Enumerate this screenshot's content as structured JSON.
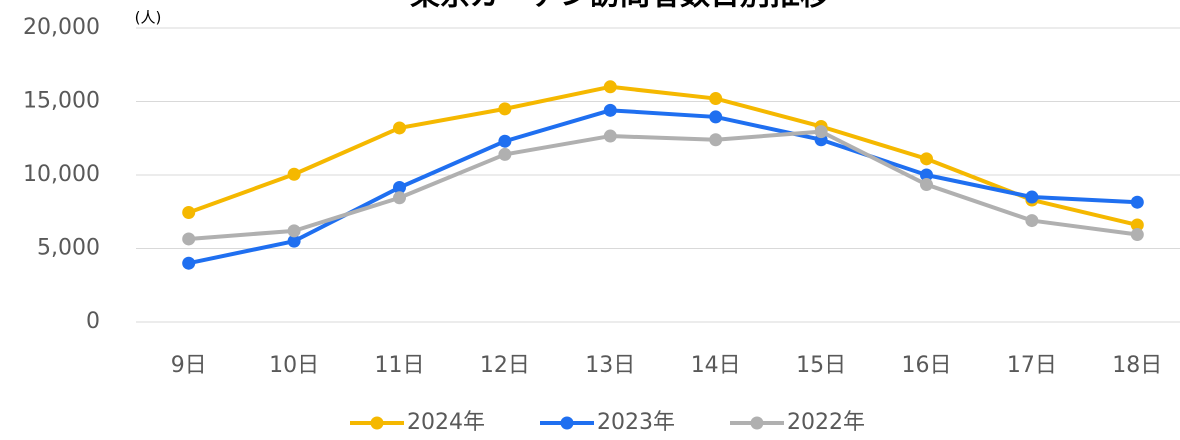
{
  "chart_data": {
    "type": "line",
    "title": "東京ガーデン訪問者数日別推移",
    "unit_label": "(人)",
    "categories": [
      "9日",
      "10日",
      "11日",
      "12日",
      "13日",
      "14日",
      "15日",
      "16日",
      "17日",
      "18日"
    ],
    "series": [
      {
        "name": "2024年",
        "color": "#f5b800",
        "values": [
          7450,
          10050,
          13200,
          14500,
          16000,
          15200,
          13300,
          11100,
          8300,
          6600
        ]
      },
      {
        "name": "2023年",
        "color": "#1f6ff0",
        "values": [
          4000,
          5500,
          9150,
          12300,
          14400,
          13950,
          12400,
          10000,
          8500,
          8150
        ]
      },
      {
        "name": "2022年",
        "color": "#b0b0b0",
        "values": [
          5650,
          6200,
          8450,
          11400,
          12650,
          12400,
          12950,
          9350,
          6900,
          5950
        ]
      }
    ],
    "ylim": [
      0,
      20000
    ],
    "yticks": [
      0,
      {
        "value": 5000,
        "label": "5,000"
      },
      {
        "value": 10000,
        "label": "10,000"
      },
      {
        "value": 15000,
        "label": "15,000"
      },
      {
        "value": 20000,
        "label": "20,000"
      }
    ],
    "grid": true,
    "legend": "bottom"
  }
}
